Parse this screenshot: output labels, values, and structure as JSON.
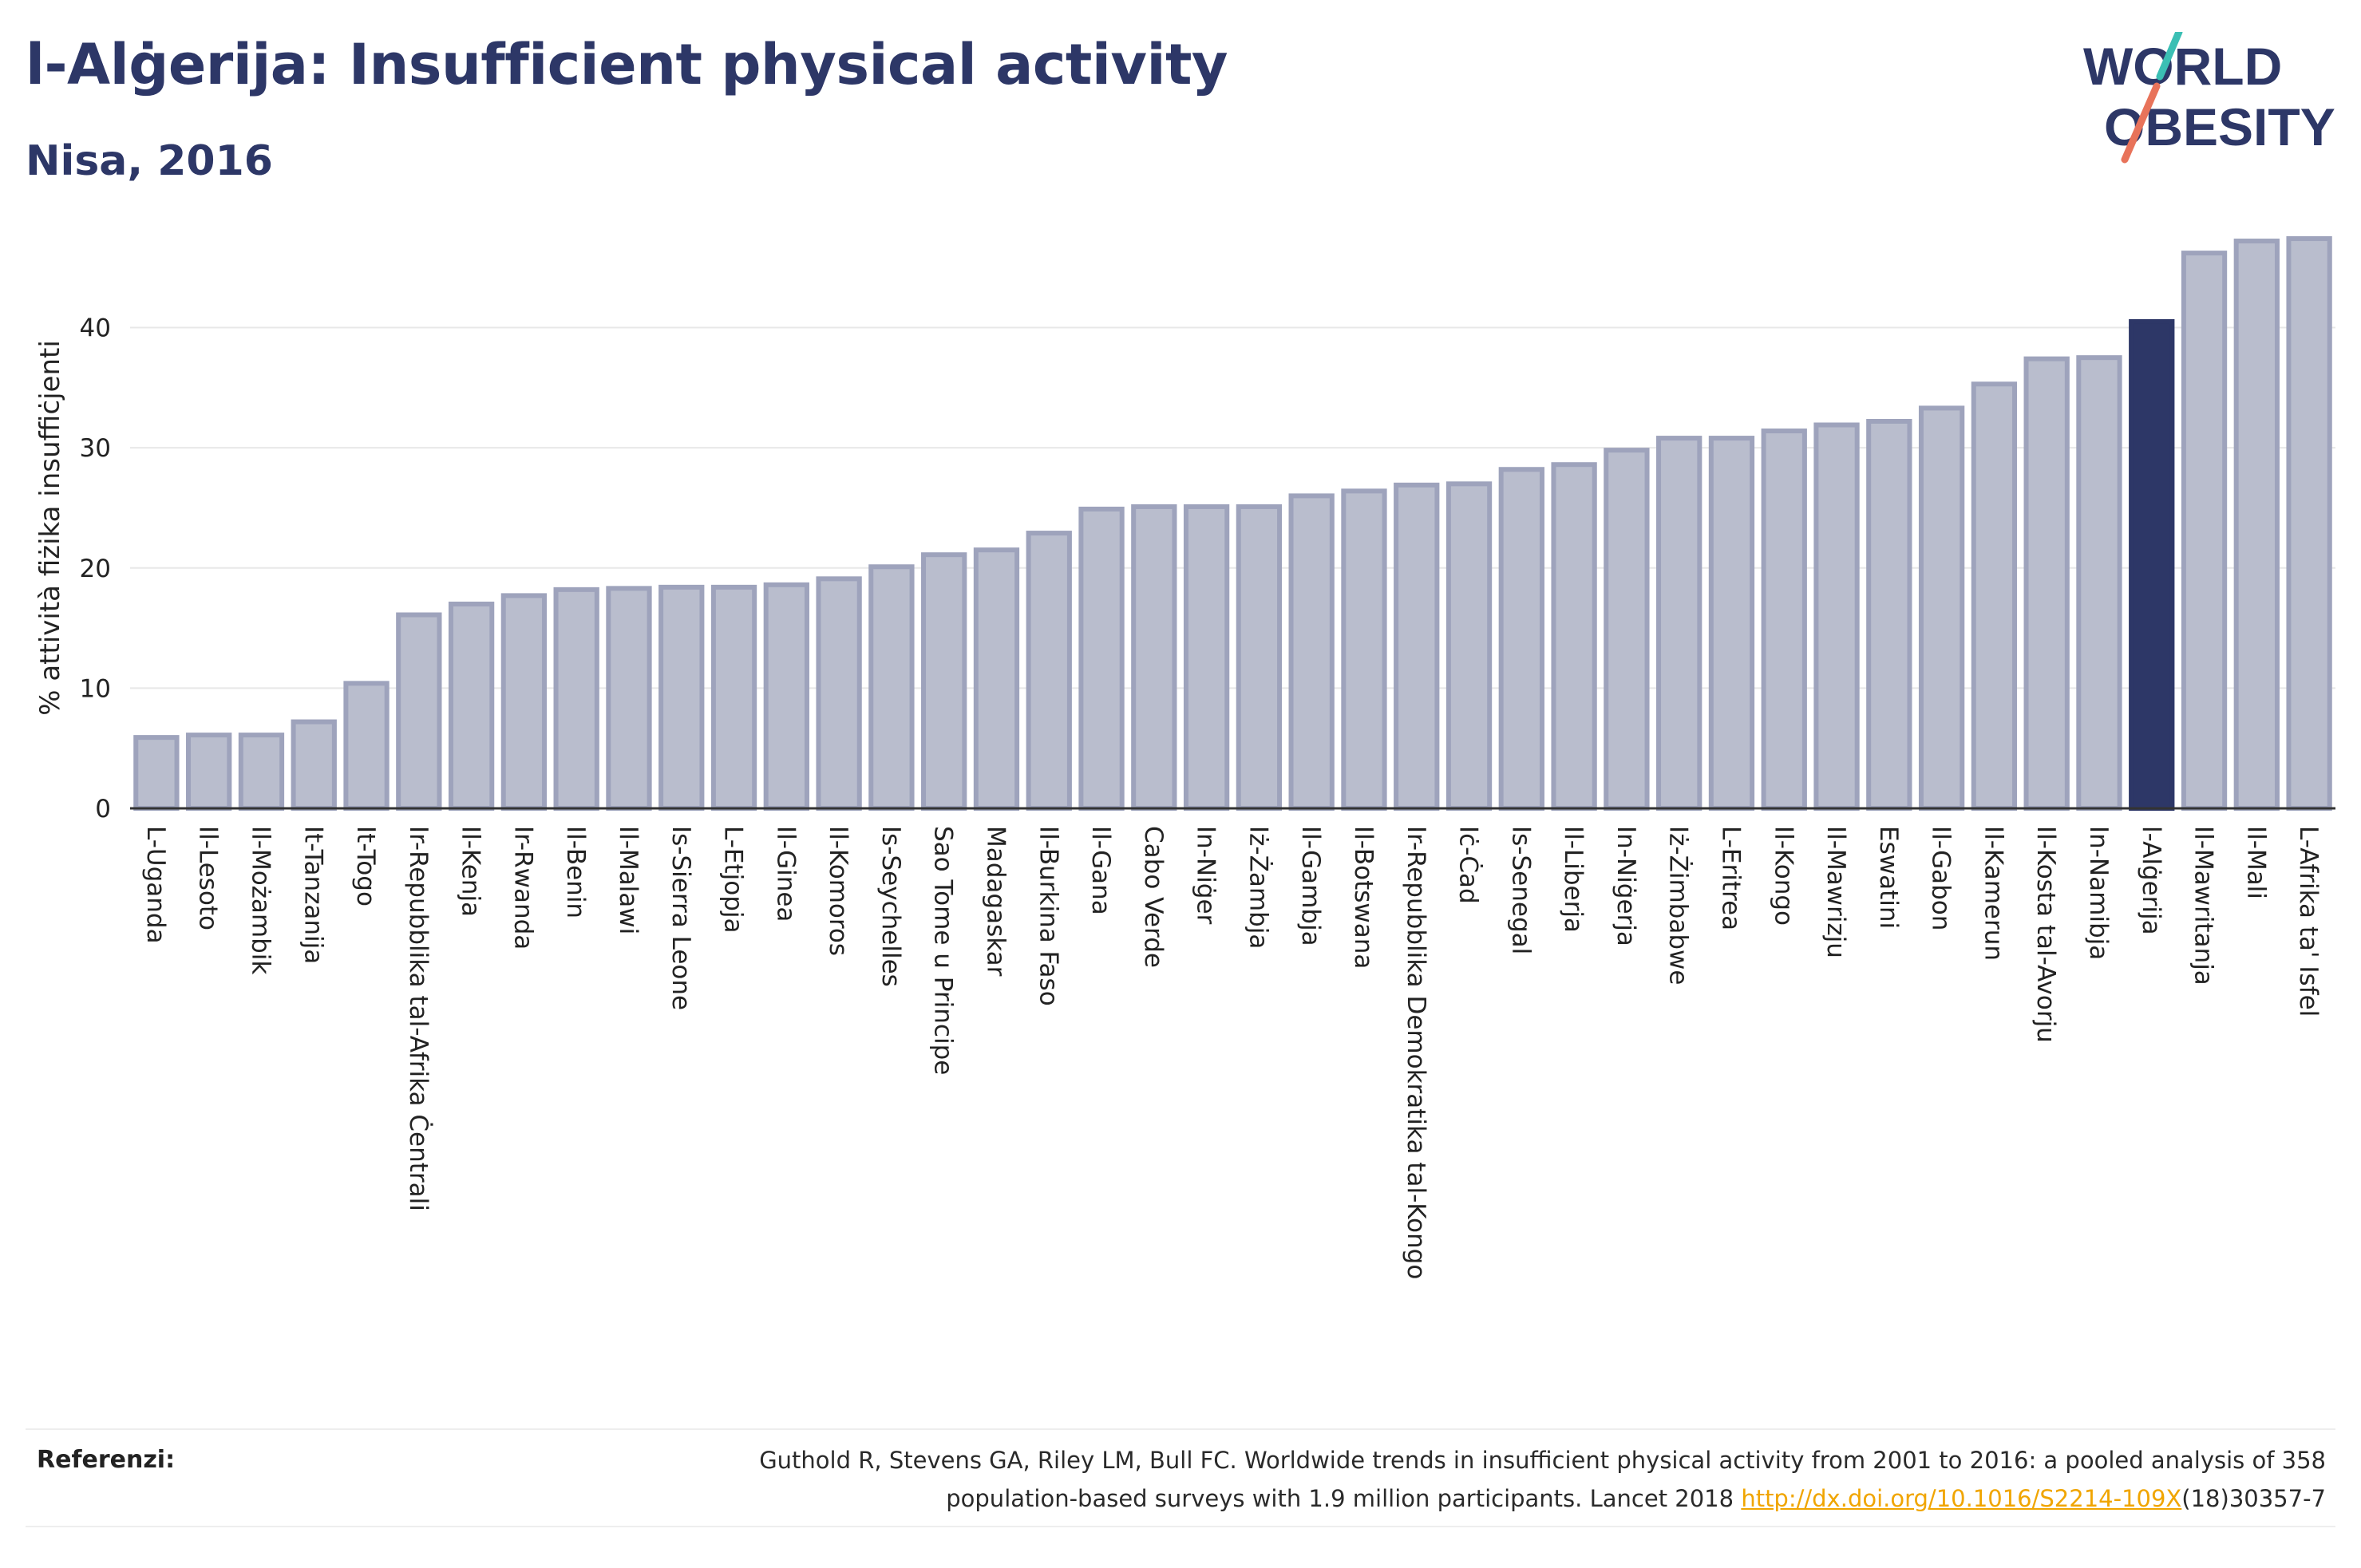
{
  "title": "l-Alġerija: Insufficient physical activity",
  "subtitle": "Nisa, 2016",
  "logo": {
    "line1": "WORLD",
    "line2": "OBESITY",
    "colors": {
      "text": "#2d3767",
      "slash_top": "#3bbfb4",
      "slash_bottom": "#e8735a"
    }
  },
  "colors": {
    "bar": "#b9bdcd",
    "bar_border": "#9ea3bc",
    "highlight": "#2d3767",
    "axis_text": "#222222",
    "grid": "#e8e8e8"
  },
  "chart_data": {
    "type": "bar",
    "ylabel": "% attività fiżika insuffiċjenti",
    "ylim": [
      0,
      48
    ],
    "yticks": [
      0,
      10,
      20,
      30,
      40
    ],
    "grid": true,
    "highlight": "l-Alġerija",
    "categories": [
      "L-Uganda",
      "Il-Lesoto",
      "Il-Możambik",
      "It-Tanzanija",
      "It-Togo",
      "Ir-Repubblika tal-Afrika Ċentrali",
      "Il-Kenja",
      "Ir-Rwanda",
      "Il-Benin",
      "Il-Malawi",
      "Is-Sierra Leone",
      "L-Etjopja",
      "Il-Ginea",
      "Il-Komoros",
      "Is-Seychelles",
      "Sao Tome u Principe",
      "Madagaskar",
      "Il-Burkina Faso",
      "Il-Gana",
      "Cabo Verde",
      "In-Niġer",
      "Iż-Żambja",
      "Il-Gambja",
      "Il-Botswana",
      "Ir-Repubblika Demokratika tal-Kongo",
      "Iċ-Ċad",
      "Is-Senegal",
      "Il-Liberja",
      "In-Niġerja",
      "Iż-Żimbabwe",
      "L-Eritrea",
      "Il-Kongo",
      "Il-Mawrizju",
      "Eswatini",
      "Il-Gabon",
      "Il-Kamerun",
      "Il-Kosta tal-Avorju",
      "In-Namibja",
      "l-Alġerija",
      "Il-Mawritanja",
      "Il-Mali",
      "L-Afrika ta' Isfel"
    ],
    "values": [
      5.9,
      6.1,
      6.1,
      7.2,
      10.4,
      16.1,
      17.0,
      17.7,
      18.2,
      18.3,
      18.4,
      18.4,
      18.6,
      19.1,
      20.1,
      21.1,
      21.5,
      22.9,
      24.9,
      25.1,
      25.1,
      25.1,
      26.0,
      26.4,
      26.9,
      27.0,
      28.2,
      28.6,
      29.8,
      30.8,
      30.8,
      31.4,
      31.9,
      32.2,
      33.3,
      35.3,
      37.4,
      37.5,
      40.5,
      46.2,
      47.2,
      47.4
    ]
  },
  "references": {
    "label": "Referenzi:",
    "line1": "Guthold R, Stevens GA, Riley LM, Bull FC. Worldwide trends in insufficient physical activity from 2001 to 2016: a pooled analysis of 358",
    "line2_prefix": "population-based surveys with 1.9 million participants. Lancet 2018 ",
    "link": "http://dx.doi.org/10.1016/S2214-109X",
    "line2_suffix": "(18)30357-7"
  }
}
